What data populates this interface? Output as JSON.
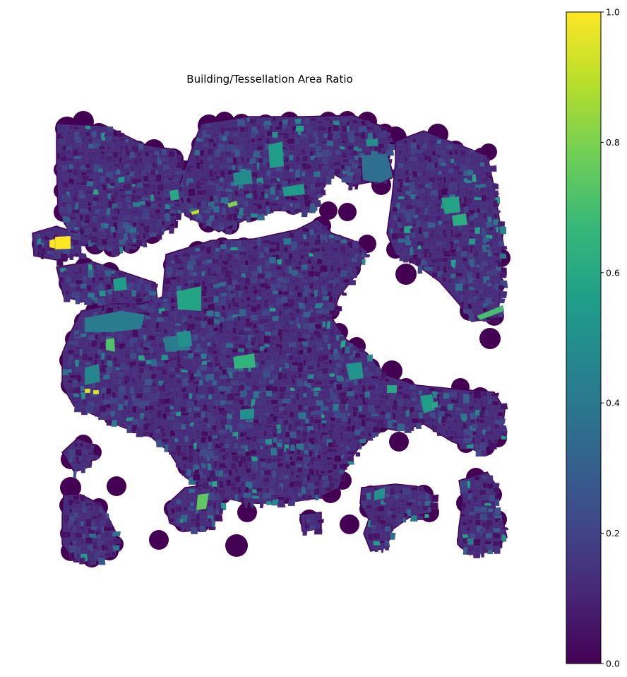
{
  "title": "Building/Tessellation Area Ratio",
  "colormap": {
    "name": "viridis",
    "stops": [
      "#440154",
      "#482878",
      "#3e4a89",
      "#31688e",
      "#26828e",
      "#1f9e89",
      "#35b779",
      "#6ece58",
      "#b5de2b",
      "#fde725"
    ]
  },
  "colorbar": {
    "min": 0.0,
    "max": 1.0,
    "ticks": [
      {
        "value": 0.0,
        "label": "0.0"
      },
      {
        "value": 0.2,
        "label": "0.2"
      },
      {
        "value": 0.4,
        "label": "0.4"
      },
      {
        "value": 0.6,
        "label": "0.6"
      },
      {
        "value": 0.8,
        "label": "0.8"
      },
      {
        "value": 1.0,
        "label": "1.0"
      }
    ]
  },
  "map_colors": {
    "background": "#ffffff",
    "base_cell": "#440154",
    "dense_area": "#472d7b",
    "cell_edge": "#5b4a8b"
  }
}
